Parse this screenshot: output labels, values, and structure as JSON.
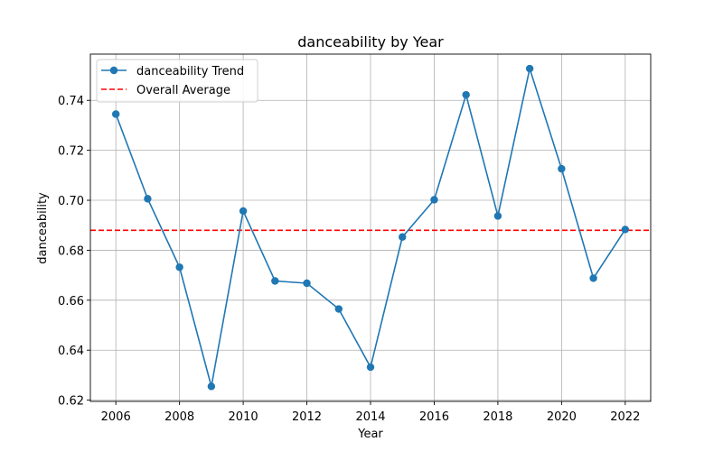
{
  "chart_data": {
    "type": "line",
    "title": "danceability by Year",
    "xlabel": "Year",
    "ylabel": "danceability",
    "xlim": [
      2005.2,
      2022.8
    ],
    "ylim": [
      0.6195,
      0.7585
    ],
    "xticks": [
      2006,
      2008,
      2010,
      2012,
      2014,
      2016,
      2018,
      2020,
      2022
    ],
    "yticks": [
      0.62,
      0.64,
      0.66,
      0.68,
      0.7,
      0.72,
      0.74
    ],
    "ytick_labels": [
      "0.62",
      "0.64",
      "0.66",
      "0.68",
      "0.70",
      "0.72",
      "0.74"
    ],
    "grid": true,
    "legend_position": "top-left",
    "series": [
      {
        "name": "danceability Trend",
        "color": "#1f77b4",
        "marker": "circle",
        "x": [
          2006,
          2007,
          2008,
          2009,
          2010,
          2011,
          2012,
          2013,
          2014,
          2015,
          2016,
          2017,
          2018,
          2019,
          2020,
          2021,
          2022
        ],
        "y": [
          0.7345,
          0.7006,
          0.6732,
          0.6255,
          0.6957,
          0.6677,
          0.6668,
          0.6565,
          0.6332,
          0.6853,
          0.7002,
          0.7422,
          0.6937,
          0.7527,
          0.7126,
          0.6688,
          0.6883
        ]
      }
    ],
    "reference_lines": [
      {
        "name": "Overall Average",
        "orientation": "horizontal",
        "value": 0.688,
        "color": "#ff0000",
        "style": "dashed"
      }
    ]
  }
}
